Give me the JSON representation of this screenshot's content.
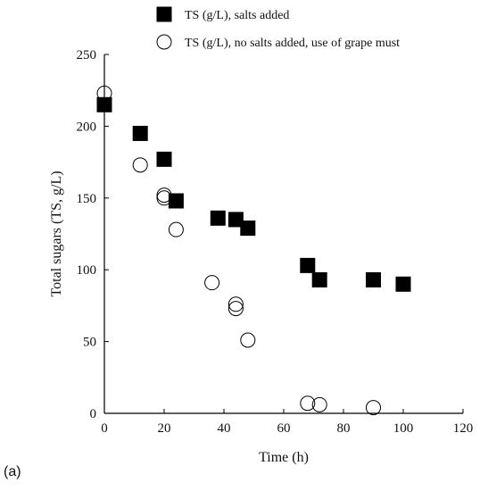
{
  "panel_label": "(a)",
  "chart_data": {
    "type": "scatter",
    "xlabel": "Time (h)",
    "ylabel": "Total sugars (TS, g/L)",
    "xlim": [
      0,
      120
    ],
    "ylim": [
      0,
      250
    ],
    "x_ticks": [
      0,
      20,
      40,
      60,
      80,
      100,
      120
    ],
    "y_ticks": [
      0,
      50,
      100,
      150,
      200,
      250
    ],
    "grid": false,
    "legend_position": "top",
    "series": [
      {
        "name": "TS (g/L), salts added",
        "marker": "filled-square",
        "color": "#000000",
        "points": [
          {
            "x": 0,
            "y": 215
          },
          {
            "x": 12,
            "y": 195
          },
          {
            "x": 20,
            "y": 177
          },
          {
            "x": 24,
            "y": 148
          },
          {
            "x": 38,
            "y": 136
          },
          {
            "x": 44,
            "y": 135
          },
          {
            "x": 48,
            "y": 129
          },
          {
            "x": 68,
            "y": 103
          },
          {
            "x": 72,
            "y": 93
          },
          {
            "x": 90,
            "y": 93
          },
          {
            "x": 100,
            "y": 90
          }
        ]
      },
      {
        "name": "TS (g/L), no salts added, use of grape must",
        "marker": "open-circle",
        "color": "#000000",
        "points": [
          {
            "x": 0,
            "y": 223
          },
          {
            "x": 12,
            "y": 173
          },
          {
            "x": 20,
            "y": 152
          },
          {
            "x": 20,
            "y": 150
          },
          {
            "x": 24,
            "y": 128
          },
          {
            "x": 36,
            "y": 91
          },
          {
            "x": 44,
            "y": 76
          },
          {
            "x": 44,
            "y": 73
          },
          {
            "x": 48,
            "y": 51
          },
          {
            "x": 68,
            "y": 7
          },
          {
            "x": 72,
            "y": 6
          },
          {
            "x": 90,
            "y": 4
          }
        ]
      }
    ]
  }
}
